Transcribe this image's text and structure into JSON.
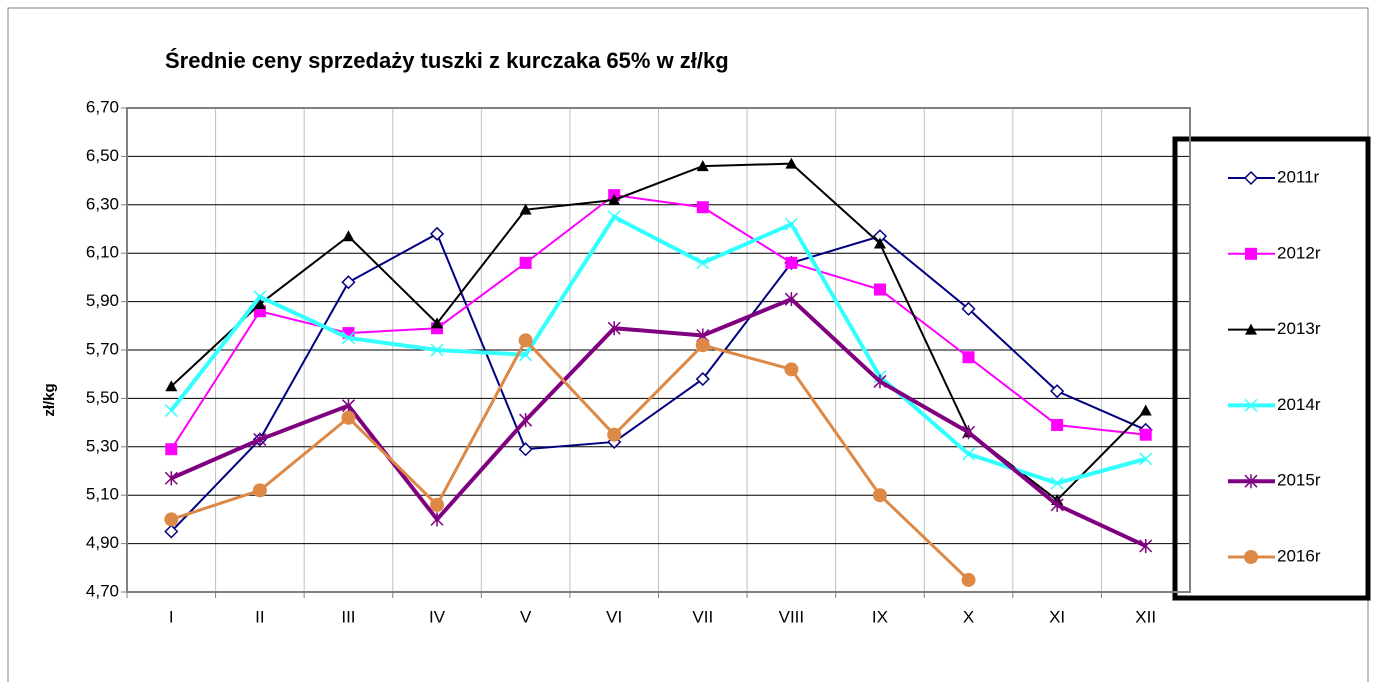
{
  "chart_data": {
    "type": "line",
    "title": "Średnie ceny sprzedaży tuszki z kurczaka 65% w zł/kg",
    "y_label": "zł/kg",
    "categories": [
      "I",
      "II",
      "III",
      "IV",
      "V",
      "VI",
      "VII",
      "VIII",
      "IX",
      "X",
      "XI",
      "XII"
    ],
    "ylim": [
      4.7,
      6.7
    ],
    "yticks": [
      {
        "value": 4.7,
        "label": "4,70"
      },
      {
        "value": 4.9,
        "label": "4,90"
      },
      {
        "value": 5.1,
        "label": "5,10"
      },
      {
        "value": 5.3,
        "label": "5,30"
      },
      {
        "value": 5.5,
        "label": "5,50"
      },
      {
        "value": 5.7,
        "label": "5,70"
      },
      {
        "value": 5.9,
        "label": "5,90"
      },
      {
        "value": 6.1,
        "label": "6,10"
      },
      {
        "value": 6.3,
        "label": "6,30"
      },
      {
        "value": 6.5,
        "label": "6,50"
      },
      {
        "value": 6.7,
        "label": "6,70"
      }
    ],
    "grid": true,
    "legend": "right",
    "series": [
      {
        "name": "2011r",
        "color": "#000080",
        "marker": "diamond",
        "width": 2,
        "values": [
          4.95,
          5.33,
          5.98,
          6.18,
          5.29,
          5.32,
          5.58,
          6.06,
          6.17,
          5.87,
          5.53,
          5.37
        ]
      },
      {
        "name": "2012r",
        "color": "#ff00ff",
        "marker": "square",
        "width": 2,
        "values": [
          5.29,
          5.86,
          5.77,
          5.79,
          6.06,
          6.34,
          6.29,
          6.06,
          5.95,
          5.67,
          5.39,
          5.35
        ]
      },
      {
        "name": "2013r",
        "color": "#000000",
        "marker": "triangle",
        "width": 2,
        "values": [
          5.55,
          5.89,
          6.17,
          5.81,
          6.28,
          6.32,
          6.46,
          6.47,
          6.14,
          5.36,
          5.08,
          5.45
        ]
      },
      {
        "name": "2014r",
        "color": "#33ffff",
        "marker": "cross",
        "width": 4,
        "values": [
          5.45,
          5.92,
          5.75,
          5.7,
          5.68,
          6.25,
          6.06,
          6.22,
          5.59,
          5.27,
          5.15,
          5.25
        ]
      },
      {
        "name": "2015r",
        "color": "#800080",
        "marker": "star",
        "width": 4,
        "values": [
          5.17,
          5.33,
          5.47,
          5.0,
          5.41,
          5.79,
          5.76,
          5.91,
          5.57,
          5.36,
          5.06,
          4.89
        ]
      },
      {
        "name": "2016r",
        "color": "#dd8844",
        "marker": "circle",
        "width": 3,
        "values": [
          5.0,
          5.12,
          5.42,
          5.06,
          5.74,
          5.35,
          5.72,
          5.62,
          5.1,
          4.75,
          null,
          null
        ]
      }
    ]
  }
}
